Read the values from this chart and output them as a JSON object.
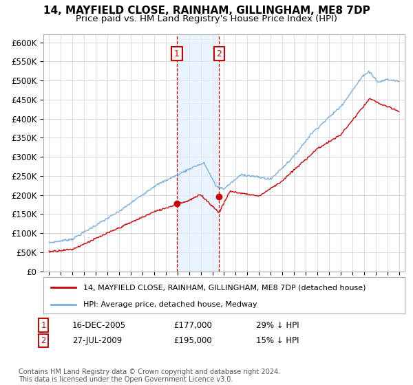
{
  "title1": "14, MAYFIELD CLOSE, RAINHAM, GILLINGHAM, ME8 7DP",
  "title2": "Price paid vs. HM Land Registry's House Price Index (HPI)",
  "ylim": [
    0,
    620000
  ],
  "yticks": [
    0,
    50000,
    100000,
    150000,
    200000,
    250000,
    300000,
    350000,
    400000,
    450000,
    500000,
    550000,
    600000
  ],
  "ytick_labels": [
    "£0",
    "£50K",
    "£100K",
    "£150K",
    "£200K",
    "£250K",
    "£300K",
    "£350K",
    "£400K",
    "£450K",
    "£500K",
    "£550K",
    "£600K"
  ],
  "sale1_date": 2005.96,
  "sale1_price": 177000,
  "sale2_date": 2009.57,
  "sale2_price": 195000,
  "sale_color": "#cc0000",
  "hpi_color": "#7aaedc",
  "shade_color": "#ddeeff",
  "legend_sale": "14, MAYFIELD CLOSE, RAINHAM, GILLINGHAM, ME8 7DP (detached house)",
  "legend_hpi": "HPI: Average price, detached house, Medway",
  "footer": "Contains HM Land Registry data © Crown copyright and database right 2024.\nThis data is licensed under the Open Government Licence v3.0."
}
